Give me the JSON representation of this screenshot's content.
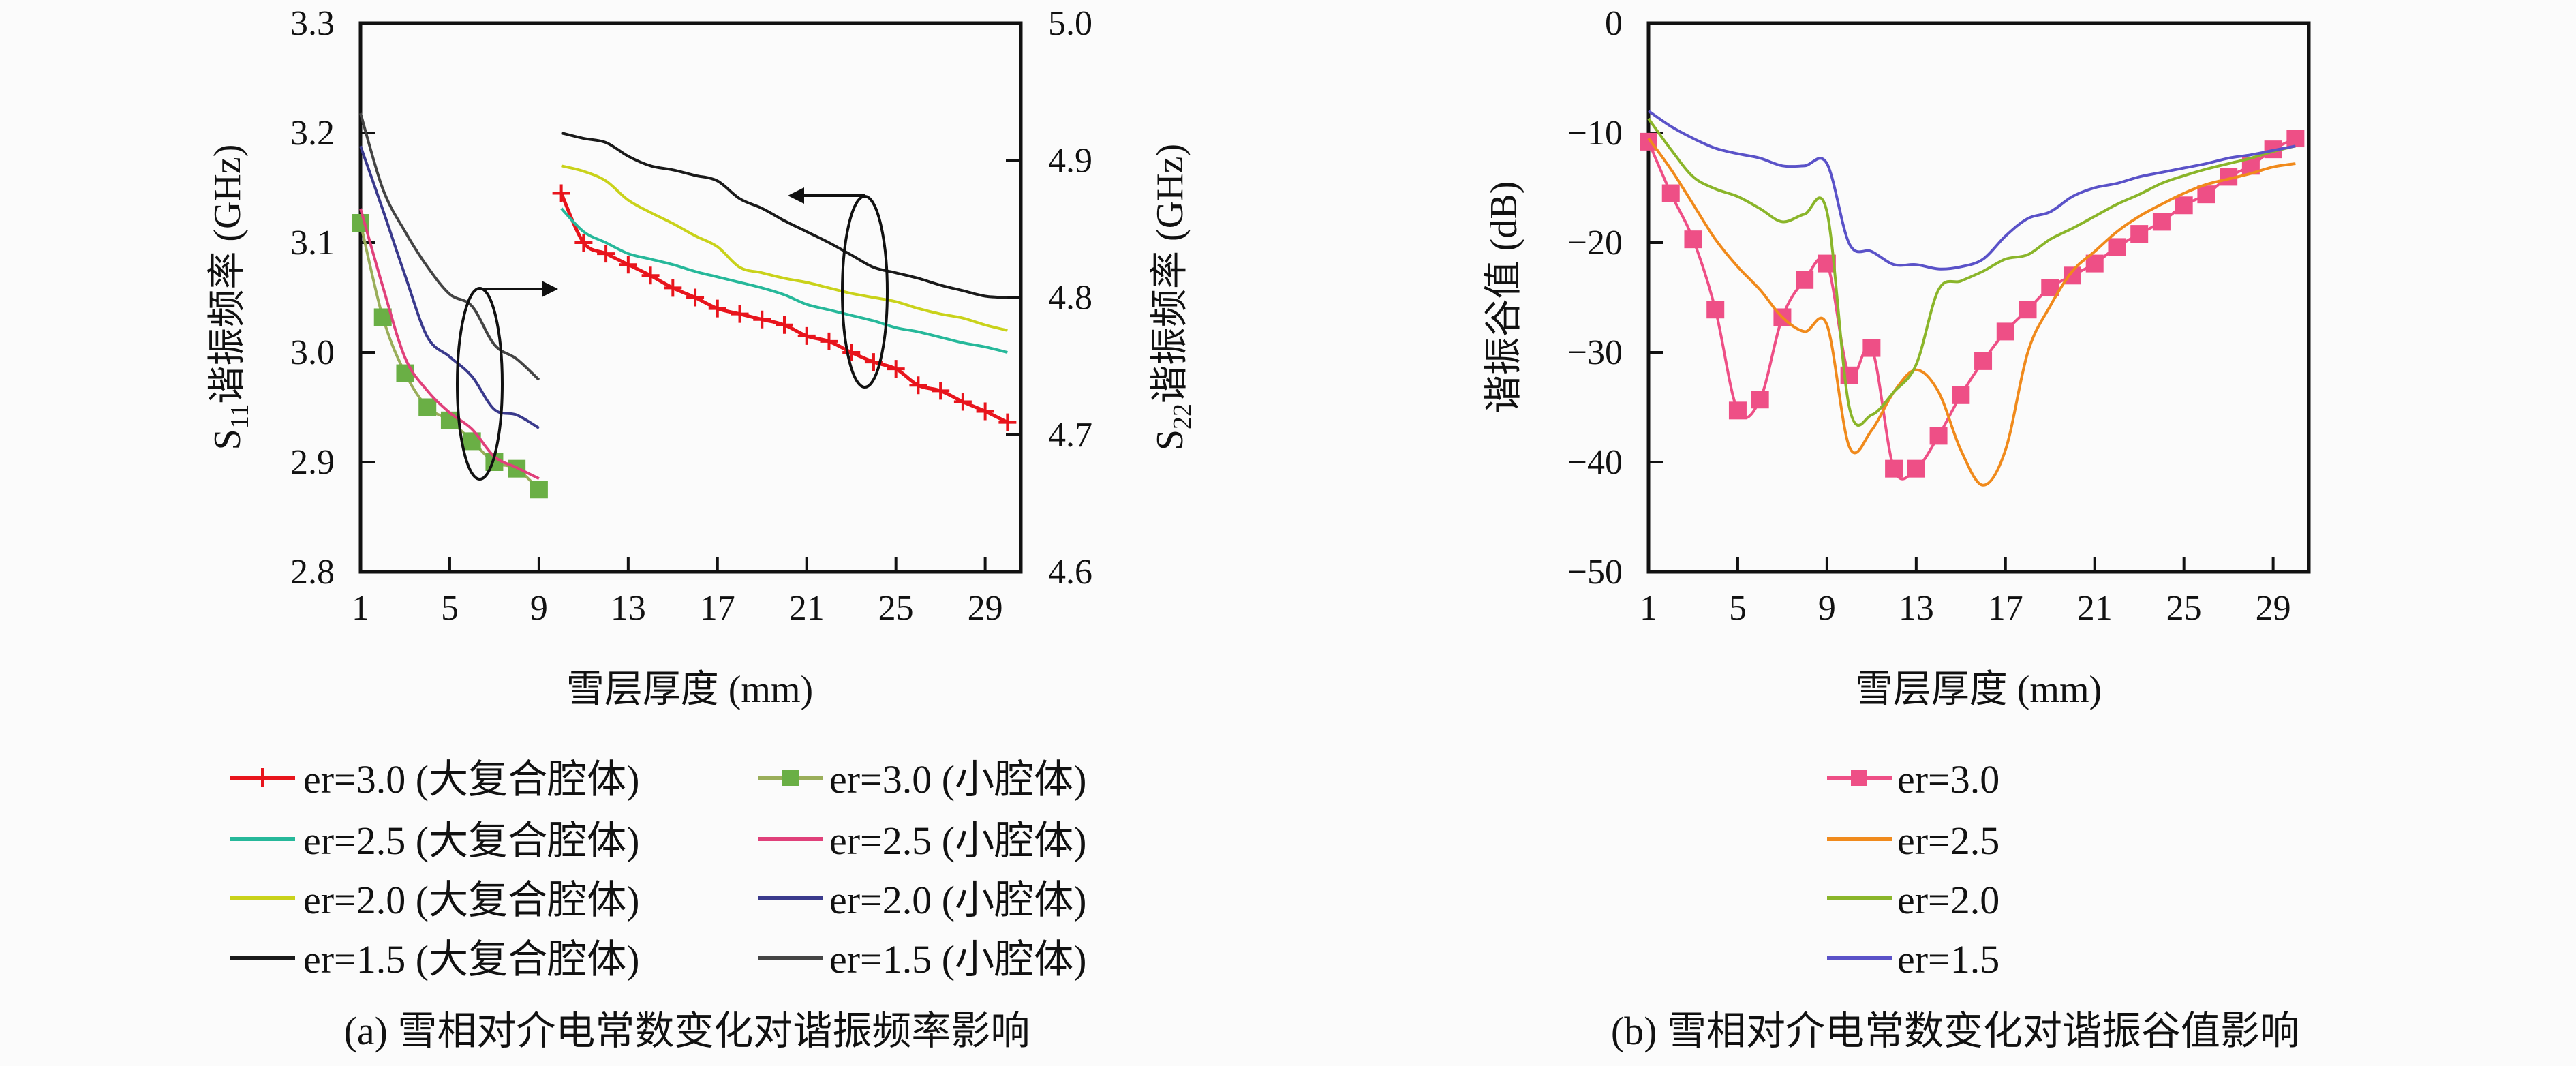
{
  "chart_data": [
    {
      "id": "a",
      "type": "line",
      "caption": "(a) 雪相对介电常数变化对谐振频率影响",
      "xlabel": "雪层厚度 (mm)",
      "ylabel_left": {
        "main": "S",
        "sub": "11",
        "rest": "谐振频率 (GHz)"
      },
      "ylabel_right": {
        "main": "S",
        "sub": "22",
        "rest": "谐振频率 (GHz)"
      },
      "xlim": [
        1,
        30.6
      ],
      "ylim_left": [
        2.8,
        3.3
      ],
      "ylim_right": [
        4.6,
        5.0
      ],
      "xticks": [
        1,
        5,
        9,
        13,
        17,
        21,
        25,
        29
      ],
      "yticks_left": [
        "2.8",
        "2.9",
        "3.0",
        "3.1",
        "3.2",
        "3.3"
      ],
      "yticks_right": [
        "4.6",
        "4.7",
        "4.8",
        "4.9",
        "5.0"
      ],
      "grid": false,
      "legend_position": "bottom",
      "annotations": [
        "ellipse with arrow pointing right (small cavity curves use left axis)",
        "ellipse with arrow pointing left (large cavity curves use right axis)"
      ],
      "series": [
        {
          "name": "er=3.0 (大复合腔体)",
          "axis": "right",
          "color": "#e8141c",
          "marker": "plus",
          "x": [
            10,
            11,
            12,
            13,
            14,
            15,
            16,
            17,
            18,
            19,
            20,
            21,
            22,
            23,
            24,
            25,
            26,
            27,
            28,
            29,
            30
          ],
          "y": [
            4.876,
            4.84,
            4.832,
            4.824,
            4.816,
            4.807,
            4.8,
            4.792,
            4.788,
            4.784,
            4.78,
            4.772,
            4.768,
            4.76,
            4.753,
            4.748,
            4.736,
            4.732,
            4.724,
            4.717,
            4.709
          ]
        },
        {
          "name": "er=3.0 (小腔体)",
          "axis": "left",
          "color": "#9aae5a",
          "markerColor": "#6aaf45",
          "marker": "square",
          "x": [
            1,
            2,
            3,
            4,
            5,
            6,
            7,
            8,
            9
          ],
          "y": [
            3.118,
            3.032,
            2.981,
            2.95,
            2.938,
            2.919,
            2.9,
            2.894,
            2.875
          ]
        },
        {
          "name": "er=2.5 (大复合腔体)",
          "axis": "right",
          "color": "#26b89a",
          "marker": "none",
          "x": [
            10,
            11,
            12,
            13,
            14,
            15,
            16,
            17,
            18,
            19,
            20,
            21,
            22,
            23,
            24,
            25,
            26,
            27,
            28,
            29,
            30
          ],
          "y": [
            4.865,
            4.848,
            4.84,
            4.832,
            4.828,
            4.824,
            4.819,
            4.815,
            4.811,
            4.807,
            4.802,
            4.795,
            4.791,
            4.787,
            4.783,
            4.778,
            4.775,
            4.771,
            4.767,
            4.764,
            4.76
          ]
        },
        {
          "name": "er=2.5 (小腔体)",
          "axis": "left",
          "color": "#e0407a",
          "marker": "none",
          "x": [
            1,
            2,
            3,
            4,
            5,
            6,
            7,
            8,
            9
          ],
          "y": [
            3.131,
            3.06,
            2.995,
            2.965,
            2.945,
            2.93,
            2.905,
            2.895,
            2.885
          ]
        },
        {
          "name": "er=2.0 (大复合腔体)",
          "axis": "right",
          "color": "#c9d21a",
          "marker": "none",
          "x": [
            10,
            11,
            12,
            13,
            14,
            15,
            16,
            17,
            18,
            19,
            20,
            21,
            22,
            23,
            24,
            25,
            26,
            27,
            28,
            29,
            30
          ],
          "y": [
            4.896,
            4.892,
            4.885,
            4.871,
            4.862,
            4.854,
            4.845,
            4.837,
            4.822,
            4.818,
            4.814,
            4.811,
            4.807,
            4.803,
            4.8,
            4.797,
            4.792,
            4.788,
            4.785,
            4.78,
            4.776
          ]
        },
        {
          "name": "er=2.0 (小腔体)",
          "axis": "left",
          "color": "#3a3a8c",
          "marker": "none",
          "x": [
            1,
            2,
            3,
            4,
            5,
            6,
            7,
            8,
            9
          ],
          "y": [
            3.188,
            3.13,
            3.07,
            3.014,
            2.996,
            2.978,
            2.948,
            2.943,
            2.931
          ]
        },
        {
          "name": "er=1.5 (大复合腔体)",
          "axis": "right",
          "color": "#1a1a1a",
          "marker": "none",
          "x": [
            10,
            11,
            12,
            13,
            14,
            15,
            16,
            17,
            18,
            19,
            20,
            21,
            22,
            23,
            24,
            25,
            26,
            27,
            28,
            29,
            30
          ],
          "y": [
            4.92,
            4.916,
            4.913,
            4.903,
            4.896,
            4.893,
            4.889,
            4.885,
            4.872,
            4.865,
            4.856,
            4.848,
            4.84,
            4.831,
            4.822,
            4.818,
            4.814,
            4.809,
            4.805,
            4.801,
            4.8
          ]
        },
        {
          "name": "er=1.5 (小腔体)",
          "axis": "left",
          "color": "#444444",
          "marker": "none",
          "x": [
            1,
            2,
            3,
            4,
            5,
            6,
            7,
            8,
            9
          ],
          "y": [
            3.218,
            3.149,
            3.11,
            3.078,
            3.053,
            3.042,
            3.007,
            2.994,
            2.975
          ]
        }
      ]
    },
    {
      "id": "b",
      "type": "line",
      "caption": "(b) 雪相对介电常数变化对谐振谷值影响",
      "xlabel": "雪层厚度 (mm)",
      "ylabel_left": {
        "main": "谐振谷值 (dB)",
        "sub": "",
        "rest": ""
      },
      "xlim": [
        1,
        30.6
      ],
      "ylim_left": [
        -50,
        0
      ],
      "xticks": [
        1,
        5,
        9,
        13,
        17,
        21,
        25,
        29
      ],
      "yticks_left": [
        "−50",
        "−40",
        "−30",
        "−20",
        "−10",
        "0"
      ],
      "grid": false,
      "legend_position": "bottom",
      "series": [
        {
          "name": "er=3.0",
          "axis": "left",
          "color": "#ee4f86",
          "marker": "square",
          "x": [
            1,
            2,
            3,
            4,
            5,
            6,
            7,
            8,
            9,
            10,
            11,
            12,
            13,
            14,
            15,
            16,
            17,
            18,
            19,
            20,
            21,
            22,
            23,
            24,
            25,
            26,
            27,
            28,
            29,
            30
          ],
          "y": [
            -10.8,
            -15.5,
            -19.7,
            -26.1,
            -35.3,
            -34.3,
            -26.8,
            -23.4,
            -21.9,
            -32.1,
            -29.6,
            -40.6,
            -40.6,
            -37.6,
            -33.9,
            -30.8,
            -28.1,
            -26.1,
            -24.1,
            -23.0,
            -21.9,
            -20.4,
            -19.2,
            -18.1,
            -16.6,
            -15.6,
            -14.0,
            -13.0,
            -11.5,
            -10.5
          ]
        },
        {
          "name": "er=2.5",
          "axis": "left",
          "color": "#f08a1c",
          "marker": "none",
          "x": [
            1,
            2,
            3,
            4,
            5,
            6,
            7,
            8,
            9,
            10,
            11,
            12,
            13,
            14,
            15,
            16,
            17,
            18,
            19,
            20,
            21,
            22,
            23,
            24,
            25,
            26,
            27,
            28,
            29,
            30
          ],
          "y": [
            -10.5,
            -13.3,
            -16.5,
            -19.7,
            -22.2,
            -24.3,
            -26.8,
            -28.1,
            -27.5,
            -38.6,
            -37.1,
            -33.6,
            -31.6,
            -33.6,
            -38.9,
            -42.1,
            -38.9,
            -30.0,
            -25.8,
            -22.6,
            -20.8,
            -19.0,
            -17.6,
            -16.5,
            -15.5,
            -14.7,
            -14.2,
            -13.7,
            -13.1,
            -12.8
          ]
        },
        {
          "name": "er=2.0",
          "axis": "left",
          "color": "#8ab52a",
          "marker": "none",
          "x": [
            1,
            2,
            3,
            4,
            5,
            6,
            7,
            8,
            9,
            10,
            11,
            12,
            13,
            14,
            15,
            16,
            17,
            18,
            19,
            20,
            21,
            22,
            23,
            24,
            25,
            26,
            27,
            28,
            29,
            30
          ],
          "y": [
            -8.7,
            -11.5,
            -14.0,
            -15.1,
            -15.8,
            -16.9,
            -18.1,
            -17.4,
            -17.2,
            -35.0,
            -35.7,
            -33.6,
            -31.1,
            -24.3,
            -23.5,
            -22.6,
            -21.5,
            -21.1,
            -19.7,
            -18.7,
            -17.6,
            -16.5,
            -15.6,
            -14.6,
            -13.9,
            -13.3,
            -12.8,
            -12.3,
            -11.7,
            -11.2
          ]
        },
        {
          "name": "er=1.5",
          "axis": "left",
          "color": "#5a52c8",
          "marker": "none",
          "x": [
            1,
            2,
            3,
            4,
            5,
            6,
            7,
            8,
            9,
            10,
            11,
            12,
            13,
            14,
            15,
            16,
            17,
            18,
            19,
            20,
            21,
            22,
            23,
            24,
            25,
            26,
            27,
            28,
            29,
            30
          ],
          "y": [
            -8.0,
            -9.4,
            -10.5,
            -11.4,
            -11.9,
            -12.3,
            -13.0,
            -13.0,
            -12.8,
            -20.1,
            -20.8,
            -22.0,
            -22.0,
            -22.4,
            -22.2,
            -21.5,
            -19.4,
            -17.8,
            -17.2,
            -15.8,
            -15.0,
            -14.6,
            -14.0,
            -13.6,
            -13.2,
            -12.8,
            -12.3,
            -12.0,
            -11.6,
            -11.2
          ]
        }
      ]
    }
  ]
}
